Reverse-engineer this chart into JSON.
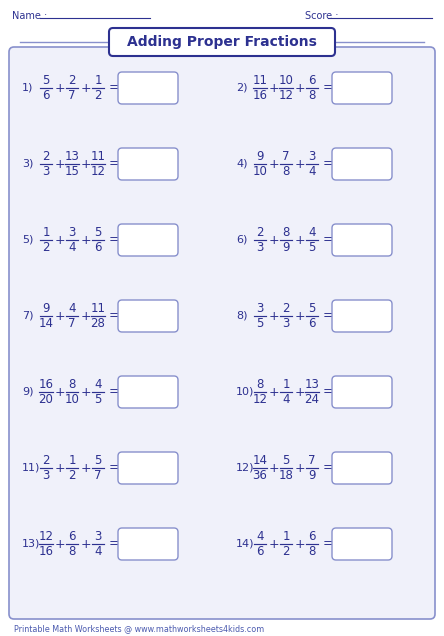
{
  "title": "Adding Proper Fractions",
  "name_label": "Name :",
  "score_label": "Score :",
  "footer": "Printable Math Worksheets @ www.mathworksheets4kids.com",
  "dark_blue": "#2D3190",
  "medium_blue": "#4C5BAF",
  "light_blue_bg": "#F0F1FA",
  "border_color": "#8890CC",
  "problems": [
    {
      "num": "1)",
      "fracs": [
        [
          "5",
          "6"
        ],
        [
          "2",
          "7"
        ],
        [
          "1",
          "2"
        ]
      ]
    },
    {
      "num": "2)",
      "fracs": [
        [
          "11",
          "16"
        ],
        [
          "10",
          "12"
        ],
        [
          "6",
          "8"
        ]
      ]
    },
    {
      "num": "3)",
      "fracs": [
        [
          "2",
          "3"
        ],
        [
          "13",
          "15"
        ],
        [
          "11",
          "12"
        ]
      ]
    },
    {
      "num": "4)",
      "fracs": [
        [
          "9",
          "10"
        ],
        [
          "7",
          "8"
        ],
        [
          "3",
          "4"
        ]
      ]
    },
    {
      "num": "5)",
      "fracs": [
        [
          "1",
          "2"
        ],
        [
          "3",
          "4"
        ],
        [
          "5",
          "6"
        ]
      ]
    },
    {
      "num": "6)",
      "fracs": [
        [
          "2",
          "3"
        ],
        [
          "8",
          "9"
        ],
        [
          "4",
          "5"
        ]
      ]
    },
    {
      "num": "7)",
      "fracs": [
        [
          "9",
          "14"
        ],
        [
          "4",
          "7"
        ],
        [
          "11",
          "28"
        ]
      ]
    },
    {
      "num": "8)",
      "fracs": [
        [
          "3",
          "5"
        ],
        [
          "2",
          "3"
        ],
        [
          "5",
          "6"
        ]
      ]
    },
    {
      "num": "9)",
      "fracs": [
        [
          "16",
          "20"
        ],
        [
          "8",
          "10"
        ],
        [
          "4",
          "5"
        ]
      ]
    },
    {
      "num": "10)",
      "fracs": [
        [
          "8",
          "12"
        ],
        [
          "1",
          "4"
        ],
        [
          "13",
          "24"
        ]
      ]
    },
    {
      "num": "11)",
      "fracs": [
        [
          "2",
          "3"
        ],
        [
          "1",
          "2"
        ],
        [
          "5",
          "7"
        ]
      ]
    },
    {
      "num": "12)",
      "fracs": [
        [
          "14",
          "36"
        ],
        [
          "5",
          "18"
        ],
        [
          "7",
          "9"
        ]
      ]
    },
    {
      "num": "13)",
      "fracs": [
        [
          "12",
          "16"
        ],
        [
          "6",
          "8"
        ],
        [
          "3",
          "4"
        ]
      ]
    },
    {
      "num": "14)",
      "fracs": [
        [
          "4",
          "6"
        ],
        [
          "1",
          "2"
        ],
        [
          "6",
          "8"
        ]
      ]
    }
  ],
  "figsize": [
    4.44,
    6.36
  ],
  "dpi": 100
}
